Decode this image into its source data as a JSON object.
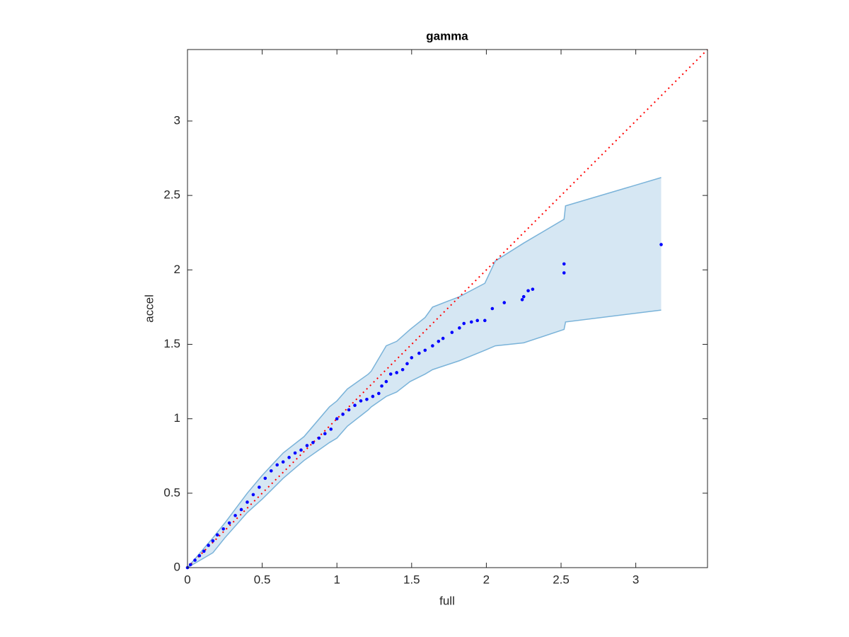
{
  "chart_data": {
    "type": "scatter",
    "title": "gamma",
    "x_label": "full",
    "y_label": "accel",
    "xlim": [
      0,
      3.48
    ],
    "ylim": [
      0,
      3.48
    ],
    "xticks": [
      0,
      0.5,
      1,
      1.5,
      2,
      2.5,
      3
    ],
    "yticks": [
      0,
      0.5,
      1,
      1.5,
      2,
      2.5,
      3
    ],
    "box": true,
    "points": {
      "color": "#0000ff",
      "x": [
        0,
        0.02,
        0.05,
        0.08,
        0.11,
        0.14,
        0.17,
        0.2,
        0.24,
        0.28,
        0.32,
        0.36,
        0.4,
        0.44,
        0.48,
        0.52,
        0.56,
        0.6,
        0.64,
        0.68,
        0.72,
        0.76,
        0.8,
        0.84,
        0.88,
        0.92,
        0.96,
        1.0,
        1.04,
        1.08,
        1.12,
        1.16,
        1.2,
        1.24,
        1.28,
        1.3,
        1.33,
        1.36,
        1.4,
        1.44,
        1.47,
        1.5,
        1.55,
        1.59,
        1.64,
        1.68,
        1.71,
        1.77,
        1.82,
        1.85,
        1.9,
        1.94,
        1.99,
        2.04,
        2.12,
        2.24,
        2.25,
        2.28,
        2.31,
        2.52,
        2.52,
        3.17
      ],
      "y": [
        0,
        0.02,
        0.05,
        0.08,
        0.11,
        0.15,
        0.18,
        0.22,
        0.26,
        0.3,
        0.35,
        0.39,
        0.44,
        0.49,
        0.54,
        0.6,
        0.65,
        0.69,
        0.71,
        0.74,
        0.77,
        0.79,
        0.82,
        0.84,
        0.87,
        0.9,
        0.93,
        1.0,
        1.03,
        1.06,
        1.09,
        1.12,
        1.13,
        1.15,
        1.17,
        1.22,
        1.25,
        1.3,
        1.31,
        1.33,
        1.37,
        1.41,
        1.44,
        1.46,
        1.49,
        1.52,
        1.54,
        1.58,
        1.61,
        1.64,
        1.65,
        1.66,
        1.66,
        1.74,
        1.78,
        1.8,
        1.82,
        1.86,
        1.87,
        1.98,
        2.04,
        2.17
      ]
    },
    "band": {
      "fill": "#d6e7f3",
      "color": "#7ab3d9",
      "x": [
        0,
        0.17,
        0.25,
        0.4,
        0.5,
        0.64,
        0.78,
        0.95,
        1.0,
        1.07,
        1.21,
        1.23,
        1.33,
        1.4,
        1.49,
        1.59,
        1.64,
        1.82,
        1.99,
        2.06,
        2.25,
        2.52,
        2.53,
        3.17
      ],
      "upper": [
        0,
        0.2,
        0.3,
        0.5,
        0.62,
        0.77,
        0.88,
        1.08,
        1.12,
        1.2,
        1.3,
        1.32,
        1.49,
        1.52,
        1.6,
        1.68,
        1.75,
        1.82,
        1.91,
        2.06,
        2.18,
        2.34,
        2.43,
        2.62
      ],
      "lower": [
        0,
        0.1,
        0.2,
        0.37,
        0.46,
        0.6,
        0.72,
        0.84,
        0.87,
        0.95,
        1.06,
        1.08,
        1.15,
        1.18,
        1.25,
        1.3,
        1.33,
        1.39,
        1.46,
        1.49,
        1.51,
        1.6,
        1.65,
        1.73
      ]
    },
    "reference_line": {
      "color": "#ff0000",
      "x": [
        0,
        3.48
      ],
      "y": [
        0,
        3.48
      ]
    }
  }
}
